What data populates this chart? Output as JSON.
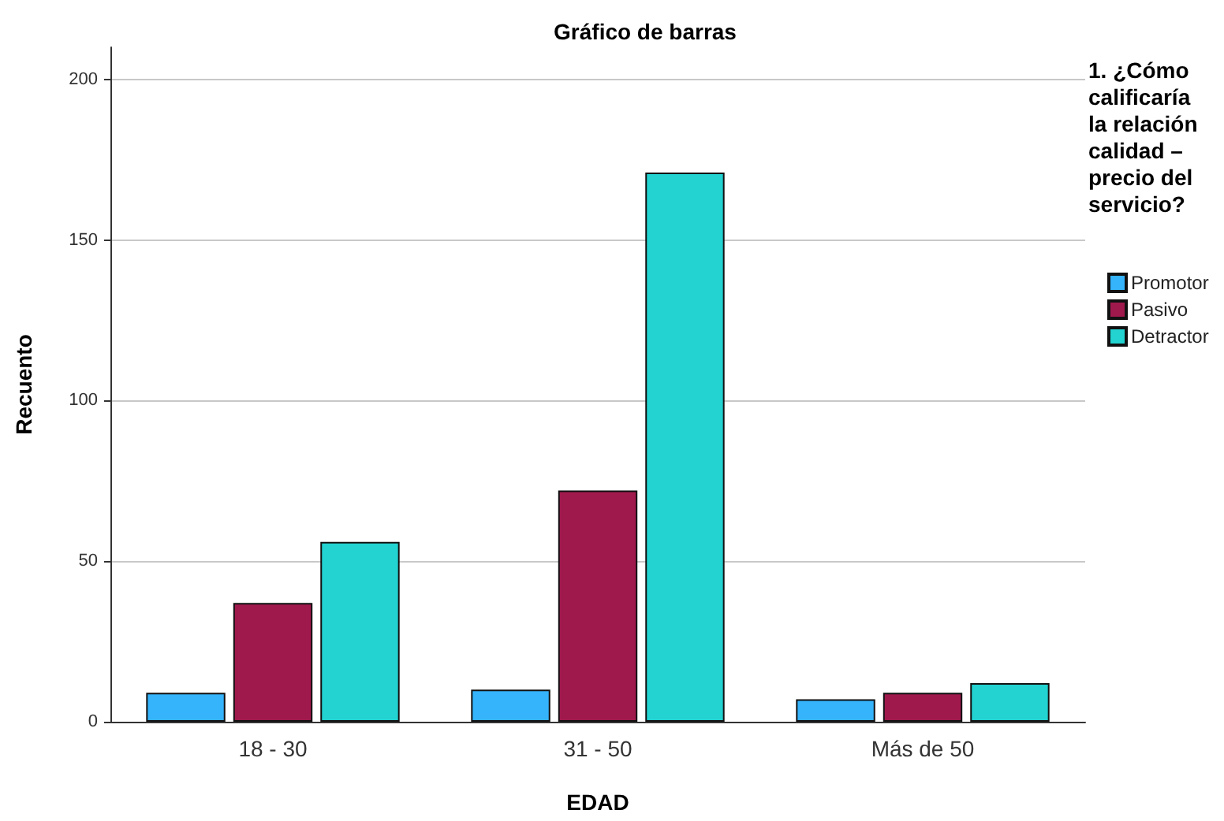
{
  "chart_data": {
    "type": "bar",
    "title": "Gráfico de barras",
    "xlabel": "EDAD",
    "ylabel": "Recuento",
    "legend_title": "1. ¿Cómo calificaría la relación calidad – precio del servicio?",
    "categories": [
      "18 - 30",
      "31 - 50",
      "Más de 50"
    ],
    "series": [
      {
        "name": "Promotor",
        "color": "#35b3fb",
        "values": [
          9,
          10,
          7
        ]
      },
      {
        "name": "Pasivo",
        "color": "#a0194d",
        "values": [
          37,
          72,
          9
        ]
      },
      {
        "name": "Detractor",
        "color": "#22d3d1",
        "values": [
          56,
          171,
          12
        ]
      }
    ],
    "ylim": [
      0,
      210
    ],
    "yticks": [
      0,
      50,
      100,
      150,
      200
    ],
    "grid": "y",
    "legend": "right"
  }
}
